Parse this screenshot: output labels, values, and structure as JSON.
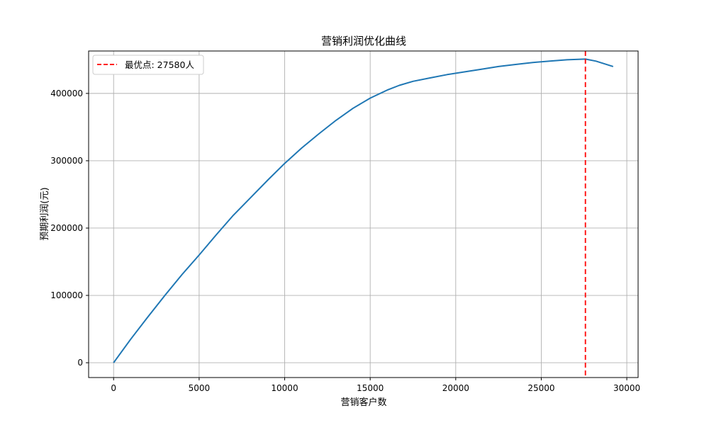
{
  "chart_data": {
    "type": "line",
    "title": "营销利润优化曲线",
    "xlabel": "营销客户数",
    "ylabel": "预期利润(元)",
    "xlim": [
      -1460,
      30660
    ],
    "ylim": [
      -22000,
      463000
    ],
    "xticks": [
      0,
      5000,
      10000,
      15000,
      20000,
      25000,
      30000
    ],
    "yticks": [
      0,
      100000,
      200000,
      300000,
      400000
    ],
    "xtick_labels": [
      "0",
      "5000",
      "10000",
      "15000",
      "20000",
      "25000",
      "30000"
    ],
    "ytick_labels": [
      "0",
      "100000",
      "200000",
      "300000",
      "400000"
    ],
    "grid": true,
    "legend_position": "top-left",
    "series": [
      {
        "color": "#1f77b4",
        "x": [
          0,
          1000,
          2000,
          3000,
          4000,
          5000,
          6000,
          7000,
          8000,
          9000,
          10000,
          11000,
          12000,
          13000,
          14000,
          15000,
          16000,
          16700,
          17500,
          18500,
          19500,
          20500,
          21500,
          22500,
          23500,
          24500,
          25500,
          26500,
          27580,
          28200,
          29200
        ],
        "y": [
          0,
          35000,
          68000,
          100000,
          131000,
          160000,
          190000,
          219000,
          245000,
          271000,
          296000,
          319000,
          340000,
          360000,
          378000,
          393000,
          405000,
          412000,
          418000,
          423000,
          428000,
          432000,
          436000,
          440000,
          443000,
          446000,
          448000,
          450000,
          451000,
          448000,
          440000
        ]
      }
    ],
    "vline": {
      "x": 27580,
      "color": "#ff0000",
      "label": "最优点: 27580人"
    }
  }
}
